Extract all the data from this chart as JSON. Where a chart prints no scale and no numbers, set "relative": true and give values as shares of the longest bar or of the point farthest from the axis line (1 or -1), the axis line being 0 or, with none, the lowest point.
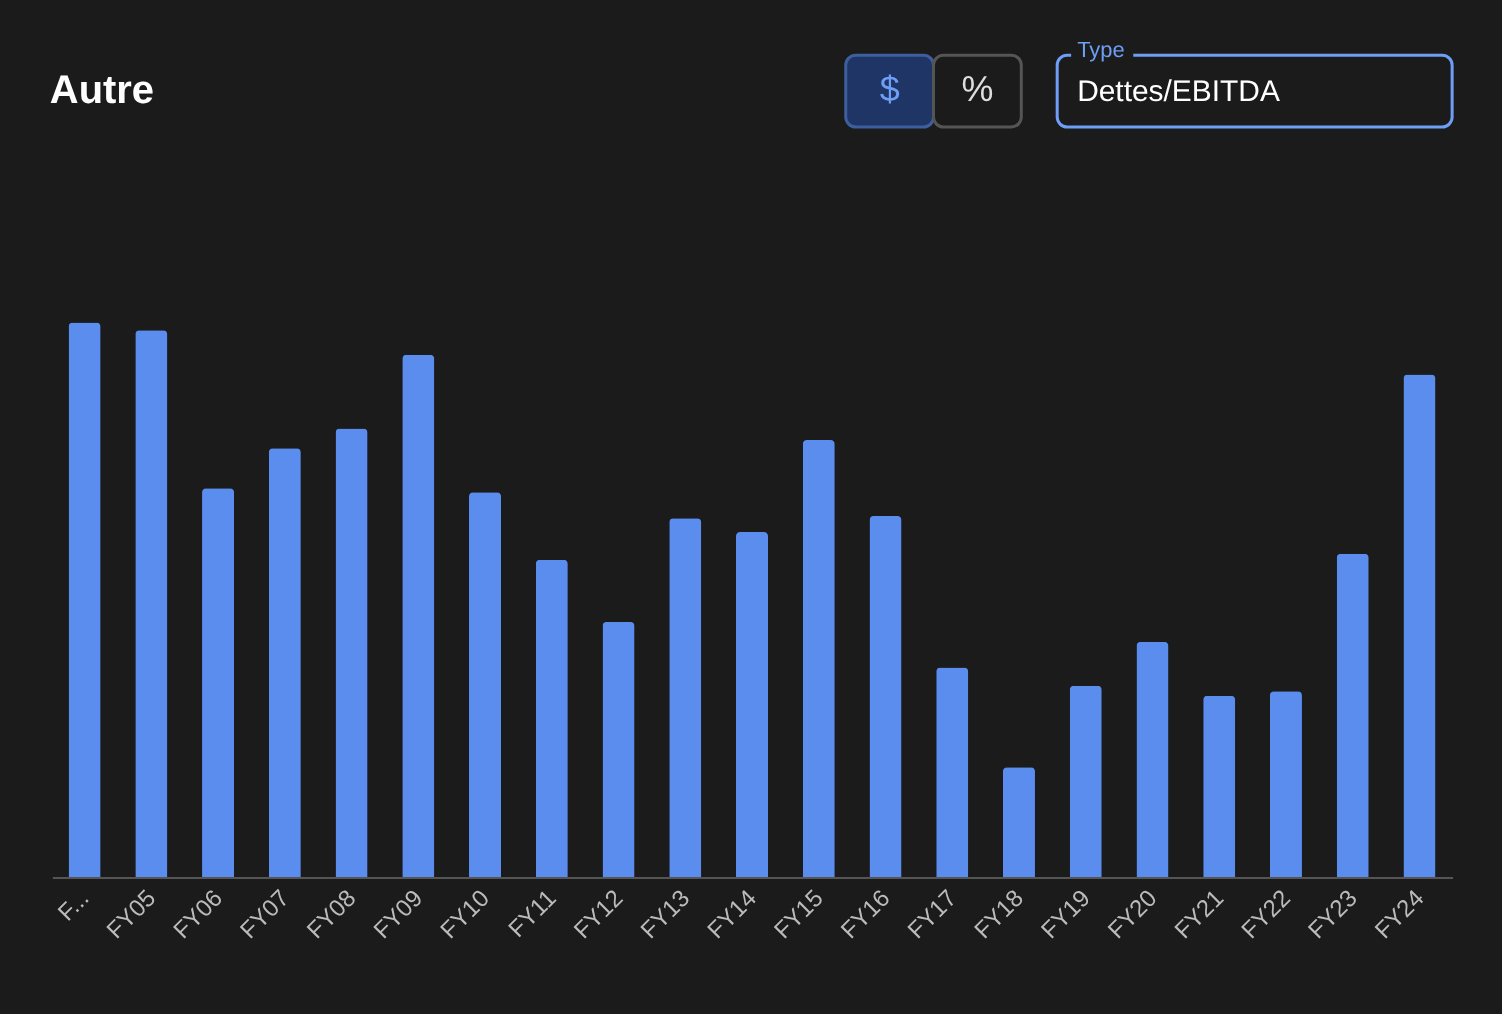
{
  "chart_data": {
    "type": "bar",
    "title": "Autre",
    "relative": true,
    "color": "#5b8def",
    "categories": [
      "F...",
      "FY05",
      "FY06",
      "FY07",
      "FY08",
      "FY09",
      "FY10",
      "FY11",
      "FY12",
      "FY13",
      "FY14",
      "FY15",
      "FY16",
      "FY17",
      "FY18",
      "FY19",
      "FY20",
      "FY21",
      "FY22",
      "FY23",
      "FY24"
    ],
    "values": [
      1.0,
      0.986,
      0.701,
      0.773,
      0.809,
      0.942,
      0.694,
      0.572,
      0.46,
      0.647,
      0.622,
      0.788,
      0.651,
      0.378,
      0.198,
      0.345,
      0.424,
      0.327,
      0.335,
      0.583,
      0.906
    ],
    "annotations": [
      "$",
      "%",
      "Type",
      "Dettes/EBITDA"
    ],
    "grid": false,
    "legend": false
  }
}
